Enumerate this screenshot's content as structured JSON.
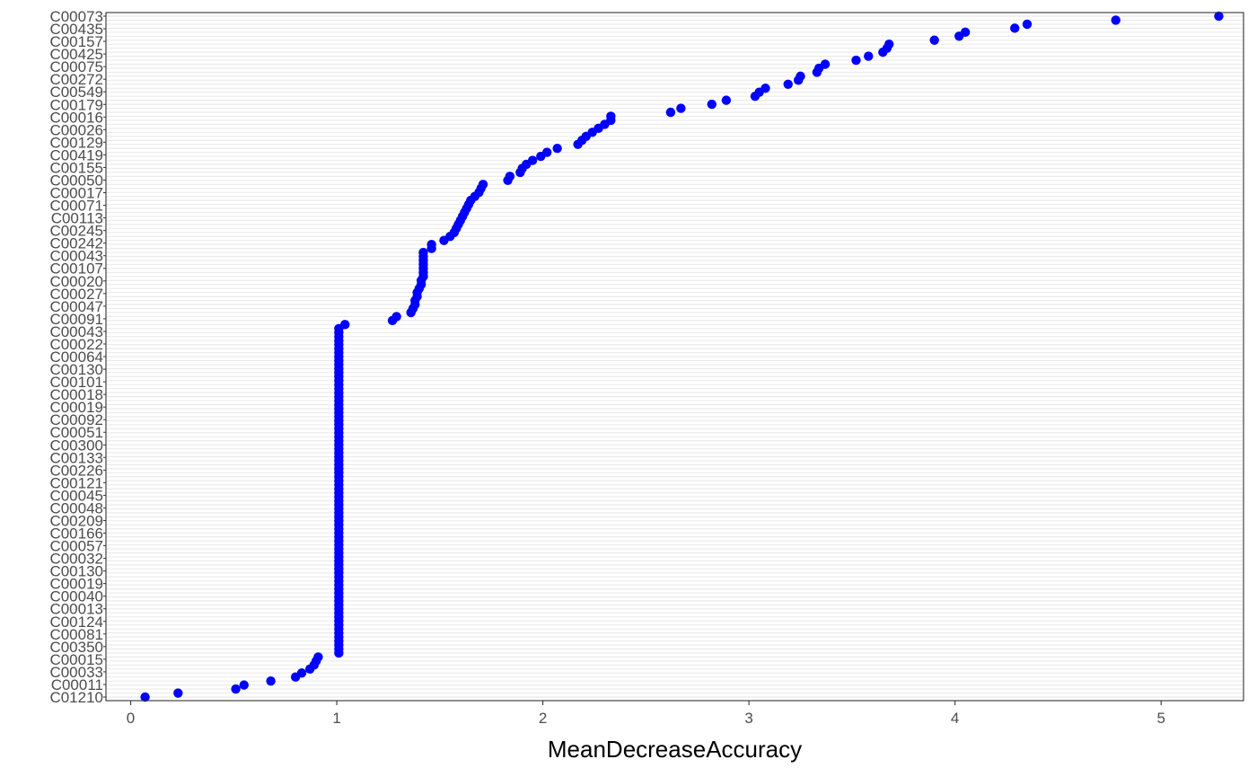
{
  "chart_data": {
    "type": "scatter",
    "title": "",
    "xlabel": "MeanDecreaseAccuracy",
    "ylabel": "",
    "xlim": [
      -0.12,
      5.4
    ],
    "x_ticks": [
      0,
      1,
      2,
      3,
      4,
      5
    ],
    "x_tick_labels": [
      "0",
      "1",
      "2",
      "3",
      "4",
      "5"
    ],
    "grid": "horizontal",
    "point_color": "#0000ff",
    "visible_labels": [
      "C00073",
      "C00435",
      "C00157",
      "C00425",
      "C00075",
      "C00272",
      "C00549",
      "C00179",
      "C00016",
      "C00026",
      "C00129",
      "C00419",
      "C00155",
      "C00050",
      "C00017",
      "C00071",
      "C00113",
      "C00245",
      "C00242",
      "C00043",
      "C00107",
      "C00020",
      "C00027",
      "C00047",
      "C00091",
      "C00043",
      "C00022",
      "C00064",
      "C00130",
      "C00101",
      "C00018",
      "C00019",
      "C00092",
      "C00051",
      "C00300",
      "C00133",
      "C00226",
      "C00121",
      "C00045",
      "C00048",
      "C00209",
      "C00166",
      "C00057",
      "C00032",
      "C00130",
      "C00019",
      "C00040",
      "C00013",
      "C00124",
      "C00081",
      "C00350",
      "C00015",
      "C00033",
      "C00011",
      "C01210"
    ],
    "values": [
      5.28,
      4.78,
      4.35,
      4.29,
      4.05,
      4.02,
      3.9,
      3.68,
      3.67,
      3.65,
      3.58,
      3.52,
      3.37,
      3.34,
      3.33,
      3.25,
      3.24,
      3.19,
      3.08,
      3.05,
      3.03,
      2.89,
      2.82,
      2.67,
      2.62,
      2.33,
      2.33,
      2.3,
      2.27,
      2.24,
      2.21,
      2.19,
      2.17,
      2.07,
      2.02,
      1.99,
      1.95,
      1.92,
      1.9,
      1.89,
      1.84,
      1.83,
      1.71,
      1.7,
      1.69,
      1.67,
      1.65,
      1.64,
      1.63,
      1.62,
      1.61,
      1.6,
      1.59,
      1.58,
      1.57,
      1.55,
      1.52,
      1.46,
      1.46,
      1.42,
      1.42,
      1.42,
      1.42,
      1.42,
      1.42,
      1.42,
      1.41,
      1.41,
      1.4,
      1.39,
      1.39,
      1.38,
      1.38,
      1.37,
      1.36,
      1.29,
      1.27,
      1.04,
      1.01,
      1.01,
      1.01,
      1.01,
      1.01,
      1.01,
      1.01,
      1.01,
      1.01,
      1.01,
      1.01,
      1.01,
      1.01,
      1.01,
      1.01,
      1.01,
      1.01,
      1.01,
      1.01,
      1.01,
      1.01,
      1.01,
      1.01,
      1.01,
      1.01,
      1.01,
      1.01,
      1.01,
      1.01,
      1.01,
      1.01,
      1.01,
      1.01,
      1.01,
      1.01,
      1.01,
      1.01,
      1.01,
      1.01,
      1.01,
      1.01,
      1.01,
      1.01,
      1.01,
      1.01,
      1.01,
      1.01,
      1.01,
      1.01,
      1.01,
      1.01,
      1.01,
      1.01,
      1.01,
      1.01,
      1.01,
      1.01,
      1.01,
      1.01,
      1.01,
      1.01,
      1.01,
      1.01,
      1.01,
      1.01,
      1.01,
      1.01,
      1.01,
      1.01,
      1.01,
      1.01,
      1.01,
      1.01,
      1.01,
      1.01,
      1.01,
      1.01,
      1.01,
      1.01,
      1.01,
      1.01,
      1.01,
      0.91,
      0.9,
      0.89,
      0.87,
      0.83,
      0.8,
      0.68,
      0.55,
      0.51,
      0.23,
      0.07
    ]
  }
}
